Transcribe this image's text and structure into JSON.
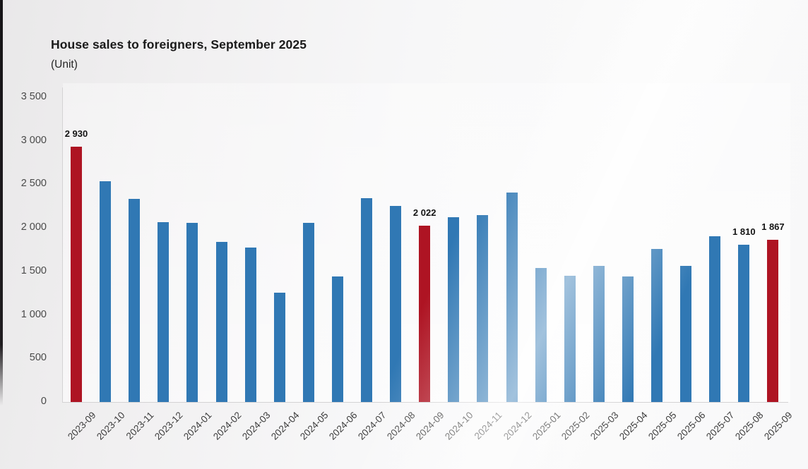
{
  "header": {
    "title": "House sales to foreigners, September 2025",
    "subtitle": "(Unit)"
  },
  "chart_data": {
    "type": "bar",
    "title": "House sales to foreigners, September 2025",
    "subtitle": "(Unit)",
    "xlabel": "",
    "ylabel": "Unit",
    "ylim": [
      0,
      3500
    ],
    "grid": false,
    "legend": false,
    "y_ticks": [
      {
        "value": 0,
        "label": "0"
      },
      {
        "value": 500,
        "label": "500"
      },
      {
        "value": 1000,
        "label": "1 000"
      },
      {
        "value": 1500,
        "label": "1 500"
      },
      {
        "value": 2000,
        "label": "2 000"
      },
      {
        "value": 2500,
        "label": "2 500"
      },
      {
        "value": 3000,
        "label": "3 000"
      },
      {
        "value": 3500,
        "label": "3 500"
      }
    ],
    "categories": [
      "2023-09",
      "2023-10",
      "2023-11",
      "2023-12",
      "2024-01",
      "2024-02",
      "2024-03",
      "2024-04",
      "2024-05",
      "2024-06",
      "2024-07",
      "2024-08",
      "2024-09",
      "2024-10",
      "2024-11",
      "2024-12",
      "2025-01",
      "2025-02",
      "2025-03",
      "2025-04",
      "2025-05",
      "2025-06",
      "2025-07",
      "2025-08",
      "2025-09"
    ],
    "values": [
      2930,
      2535,
      2330,
      2065,
      2055,
      1840,
      1775,
      1255,
      2060,
      1440,
      2345,
      2255,
      2022,
      2120,
      2145,
      2410,
      1540,
      1450,
      1565,
      1440,
      1760,
      1560,
      1905,
      1810,
      1867
    ],
    "highlight_indices": [
      0,
      12,
      24
    ],
    "data_labels": [
      {
        "index": 0,
        "text": "2 930"
      },
      {
        "index": 12,
        "text": "2 022"
      },
      {
        "index": 23,
        "text": "1 810"
      },
      {
        "index": 24,
        "text": "1 867"
      }
    ],
    "colors": {
      "bar": "#3078b4",
      "highlight": "#ae1423",
      "axis_line": "#d4d3d4",
      "title_text": "#1a1a1a",
      "tick_text": "#4a4a4a",
      "value_label_text": "#141414"
    }
  }
}
